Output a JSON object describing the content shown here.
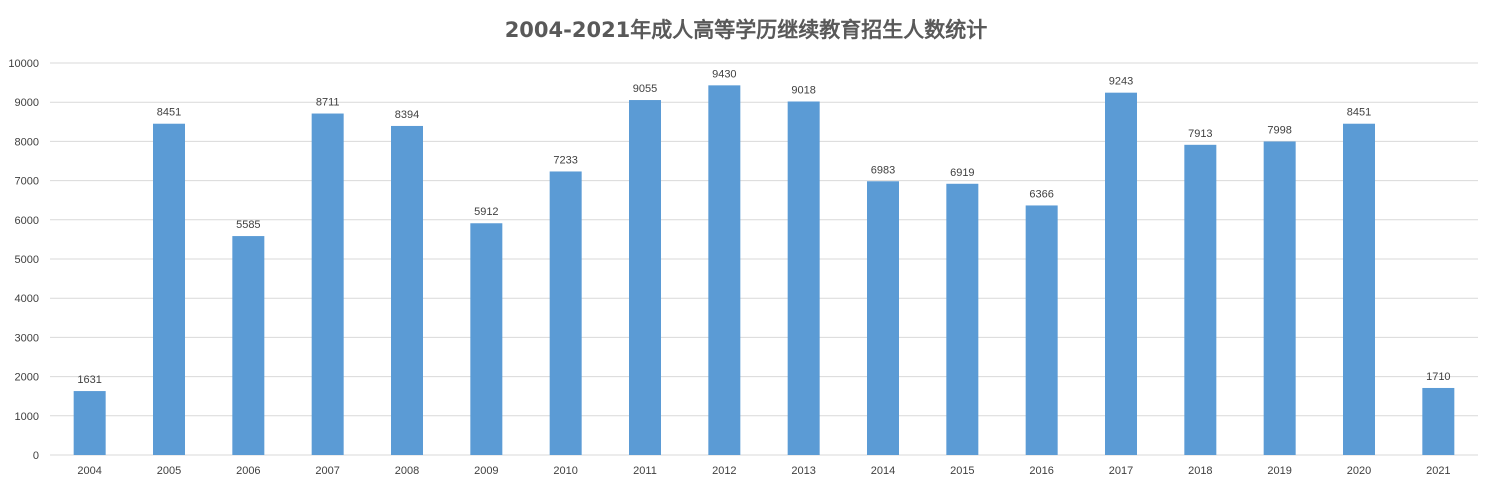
{
  "chart_data": {
    "type": "bar",
    "title": "2004-2021年成人高等学历继续教育招生人数统计",
    "xlabel": "",
    "ylabel": "",
    "categories": [
      "2004",
      "2005",
      "2006",
      "2007",
      "2008",
      "2009",
      "2010",
      "2011",
      "2012",
      "2013",
      "2014",
      "2015",
      "2016",
      "2017",
      "2018",
      "2019",
      "2020",
      "2021"
    ],
    "values": [
      1631,
      8451,
      5585,
      8711,
      8394,
      5912,
      7233,
      9055,
      9430,
      9018,
      6983,
      6919,
      6366,
      9243,
      7913,
      7998,
      8451,
      1710
    ],
    "ylim": [
      0,
      10000
    ],
    "yticks": [
      0,
      1000,
      2000,
      3000,
      4000,
      5000,
      6000,
      7000,
      8000,
      9000,
      10000
    ],
    "grid": true,
    "data_labels": true,
    "legend": "none",
    "colors": {
      "bar": "#5B9BD5",
      "grid": "#D9D9D9",
      "text": "#404040",
      "title": "#595959"
    }
  }
}
